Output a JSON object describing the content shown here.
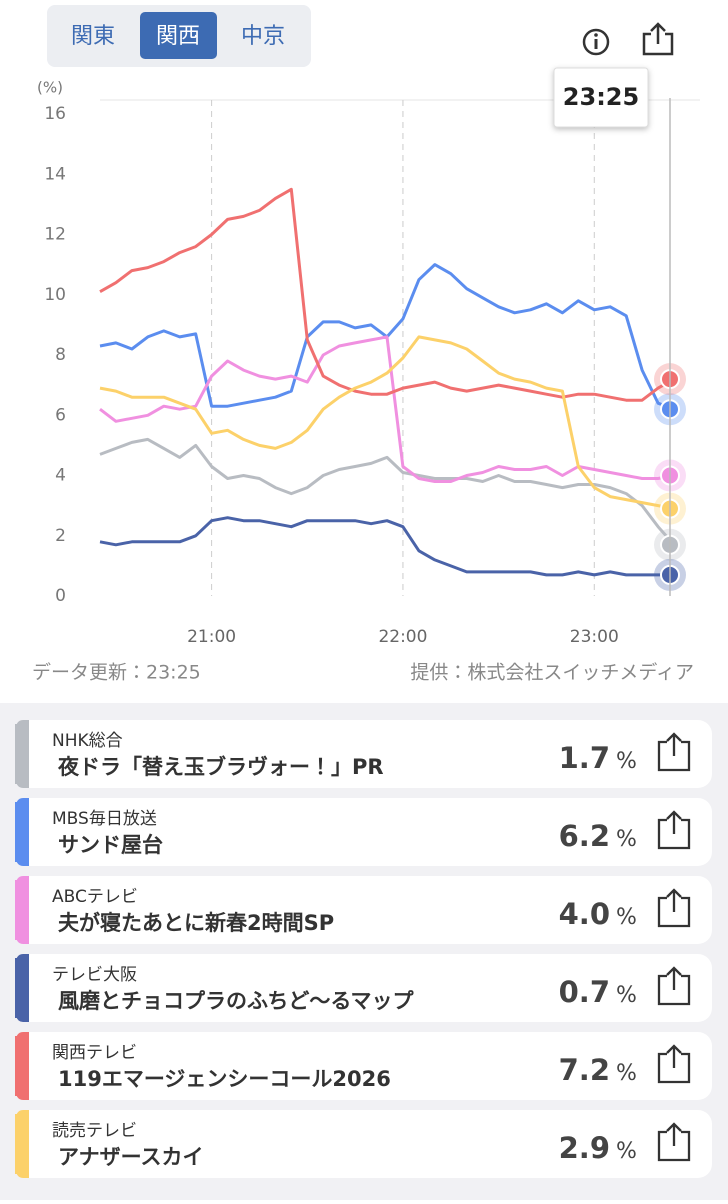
{
  "tabs": [
    "関東",
    "関西",
    "中京"
  ],
  "chart_data": {
    "type": "line",
    "y_unit": "(%)",
    "x": [
      "20:25",
      "20:30",
      "20:35",
      "20:40",
      "20:45",
      "20:50",
      "20:55",
      "21:00",
      "21:05",
      "21:10",
      "21:15",
      "21:20",
      "21:25",
      "21:30",
      "21:35",
      "21:40",
      "21:45",
      "21:50",
      "21:55",
      "22:00",
      "22:05",
      "22:10",
      "22:15",
      "22:20",
      "22:25",
      "22:30",
      "22:35",
      "22:40",
      "22:45",
      "22:50",
      "22:55",
      "23:00",
      "23:05",
      "23:10",
      "23:15",
      "23:20",
      "23:25"
    ],
    "xlim": [
      "20:25",
      "23:25"
    ],
    "xticks": [
      "21:00",
      "22:00",
      "23:00"
    ],
    "ylim": [
      0,
      16
    ],
    "yticks": [
      0,
      2,
      4,
      6,
      8,
      10,
      12,
      14,
      16
    ],
    "grid": true,
    "series": [
      {
        "name": "NHK総合",
        "color": "#b8bcc2",
        "values": [
          4.7,
          4.9,
          5.1,
          5.2,
          4.9,
          4.6,
          5.0,
          4.3,
          3.9,
          4.0,
          3.9,
          3.6,
          3.4,
          3.6,
          4.0,
          4.2,
          4.3,
          4.4,
          4.6,
          4.1,
          4.0,
          3.9,
          3.9,
          3.9,
          3.8,
          4.0,
          3.8,
          3.8,
          3.7,
          3.6,
          3.7,
          3.7,
          3.6,
          3.4,
          3.0,
          2.3,
          1.7
        ]
      },
      {
        "name": "MBS毎日放送",
        "color": "#5b8def",
        "values": [
          8.3,
          8.4,
          8.2,
          8.6,
          8.8,
          8.6,
          8.7,
          6.3,
          6.3,
          6.4,
          6.5,
          6.6,
          6.8,
          8.6,
          9.1,
          9.1,
          8.9,
          9.0,
          8.6,
          9.2,
          10.5,
          11.0,
          10.7,
          10.2,
          9.9,
          9.6,
          9.4,
          9.5,
          9.7,
          9.4,
          9.8,
          9.5,
          9.6,
          9.3,
          7.5,
          6.4,
          6.2
        ]
      },
      {
        "name": "ABCテレビ",
        "color": "#f090e0",
        "values": [
          6.2,
          5.8,
          5.9,
          6.0,
          6.3,
          6.2,
          6.3,
          7.3,
          7.8,
          7.5,
          7.3,
          7.2,
          7.3,
          7.1,
          8.0,
          8.3,
          8.4,
          8.5,
          8.6,
          4.3,
          3.9,
          3.8,
          3.8,
          4.0,
          4.1,
          4.3,
          4.2,
          4.2,
          4.3,
          4.0,
          4.3,
          4.2,
          4.1,
          4.0,
          3.9,
          3.9,
          4.0
        ]
      },
      {
        "name": "テレビ大阪",
        "color": "#4a63a8",
        "values": [
          1.8,
          1.7,
          1.8,
          1.8,
          1.8,
          1.8,
          2.0,
          2.5,
          2.6,
          2.5,
          2.5,
          2.4,
          2.3,
          2.5,
          2.5,
          2.5,
          2.5,
          2.4,
          2.5,
          2.3,
          1.5,
          1.2,
          1.0,
          0.8,
          0.8,
          0.8,
          0.8,
          0.8,
          0.7,
          0.7,
          0.8,
          0.7,
          0.8,
          0.7,
          0.7,
          0.7,
          0.7
        ]
      },
      {
        "name": "関西テレビ",
        "color": "#f07070",
        "values": [
          10.1,
          10.4,
          10.8,
          10.9,
          11.1,
          11.4,
          11.6,
          12.0,
          12.5,
          12.6,
          12.8,
          13.2,
          13.5,
          8.5,
          7.3,
          7.0,
          6.8,
          6.7,
          6.7,
          6.9,
          7.0,
          7.1,
          6.9,
          6.8,
          6.9,
          7.0,
          6.9,
          6.8,
          6.7,
          6.6,
          6.7,
          6.7,
          6.6,
          6.5,
          6.5,
          6.9,
          7.2
        ]
      },
      {
        "name": "読売テレビ",
        "color": "#fcd16a",
        "values": [
          6.9,
          6.8,
          6.6,
          6.6,
          6.6,
          6.4,
          6.2,
          5.4,
          5.5,
          5.2,
          5.0,
          4.9,
          5.1,
          5.5,
          6.2,
          6.6,
          6.9,
          7.1,
          7.4,
          7.9,
          8.6,
          8.5,
          8.4,
          8.2,
          7.8,
          7.4,
          7.2,
          7.1,
          6.9,
          6.8,
          4.3,
          3.6,
          3.3,
          3.2,
          3.1,
          3.0,
          2.9
        ]
      }
    ]
  },
  "footer": {
    "updated": "データ更新：23:25",
    "provider": "提供：株式会社スイッチメディア"
  },
  "programs": {
    "unit": "%",
    "rows": [
      {
        "title": "夜ドラ「替え玉ブラヴォー！」PR",
        "rating": "1.7"
      },
      {
        "title": "サンド屋台",
        "rating": "6.2"
      },
      {
        "title": "夫が寝たあとに新春2時間SP",
        "rating": "4.0"
      },
      {
        "title": "風磨とチョコプラのふちど〜るマップ",
        "rating": "0.7"
      },
      {
        "title": "119エマージェンシーコール2026",
        "rating": "7.2"
      },
      {
        "title": "アナザースカイ",
        "rating": "2.9"
      }
    ]
  }
}
